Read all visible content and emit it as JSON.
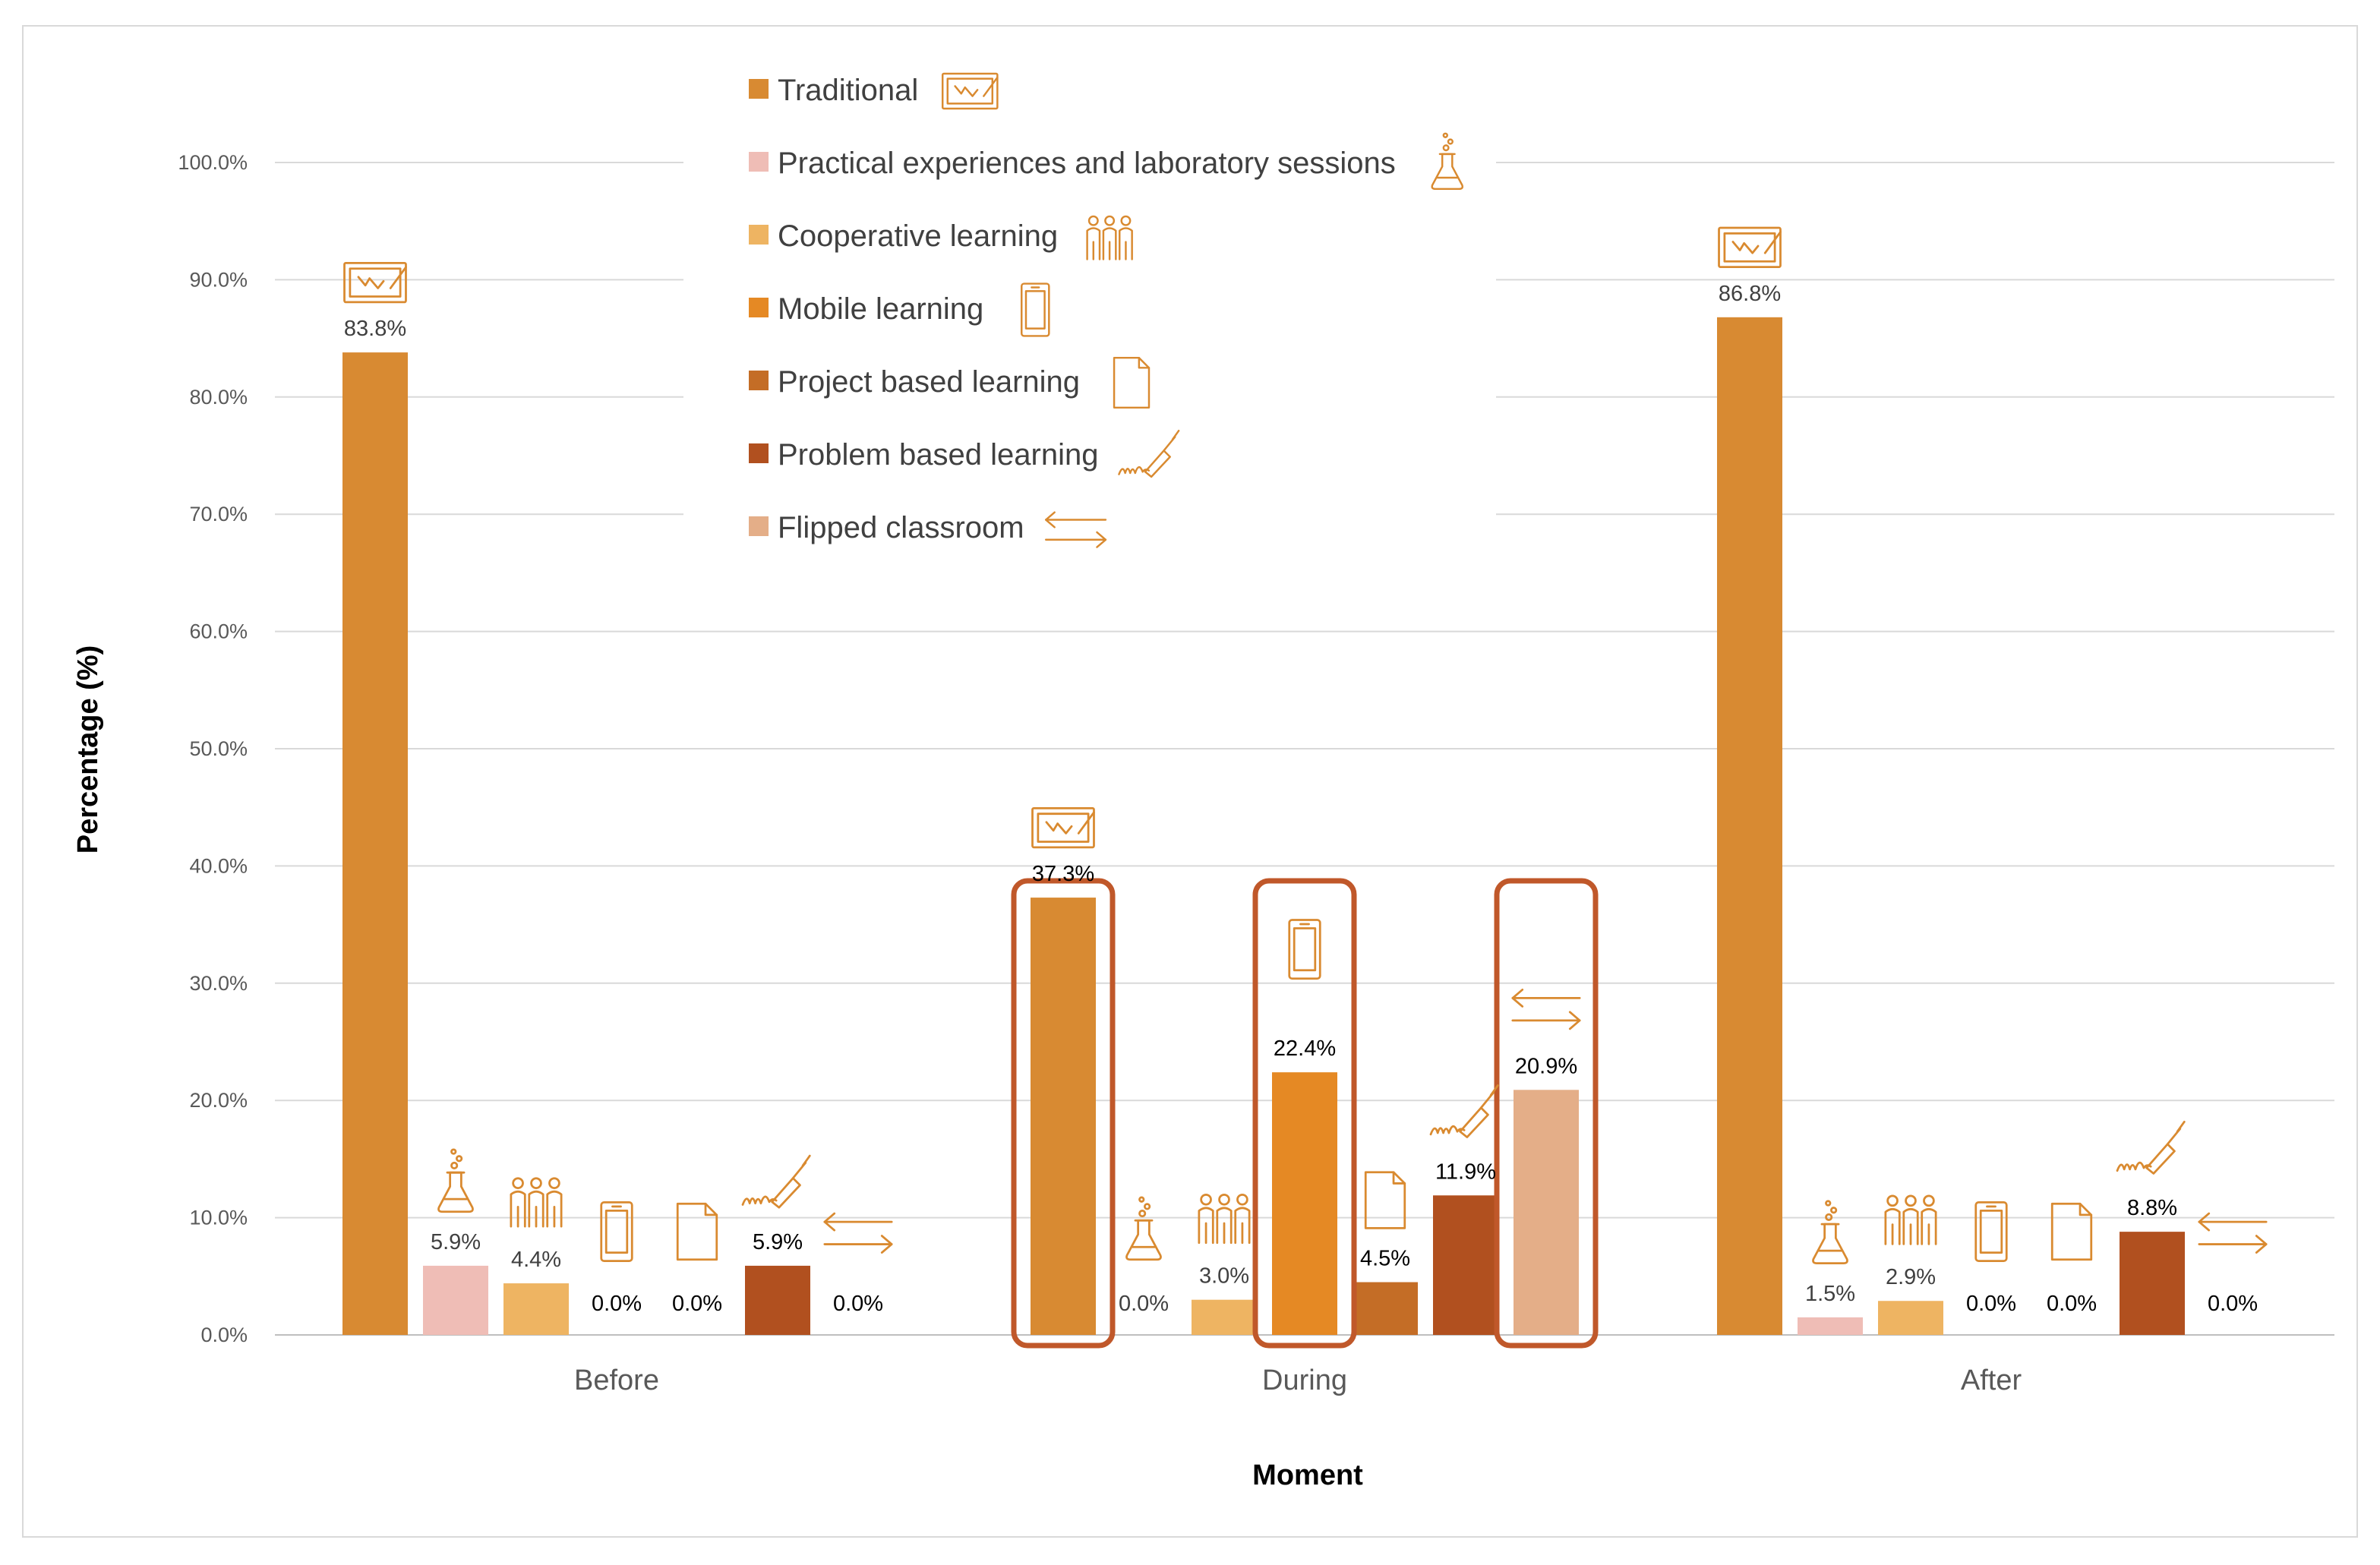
{
  "chart_data": {
    "type": "bar",
    "title": "",
    "xlabel": "Moment",
    "ylabel": "Percentage (%)",
    "ylim": [
      0,
      100
    ],
    "yticks": [
      "0.0%",
      "10.0%",
      "20.0%",
      "30.0%",
      "40.0%",
      "50.0%",
      "60.0%",
      "70.0%",
      "80.0%",
      "90.0%",
      "100.0%"
    ],
    "grid": true,
    "legend_position": "top-center",
    "categories": [
      "Before",
      "During",
      "After"
    ],
    "series": [
      {
        "name": "Traditional",
        "icon": "whiteboard-icon",
        "color": "#D88A32",
        "values": [
          83.8,
          37.3,
          86.8
        ],
        "labels": [
          "83.8%",
          "37.3%",
          "86.8%"
        ]
      },
      {
        "name": "Practical experiences and laboratory sessions",
        "icon": "flask-icon",
        "color": "#EFBDB6",
        "values": [
          5.9,
          0.0,
          1.5
        ],
        "labels": [
          "5.9%",
          "0.0%",
          "1.5%"
        ]
      },
      {
        "name": "Cooperative learning",
        "icon": "group-icon",
        "color": "#EEB462",
        "values": [
          4.4,
          3.0,
          2.9
        ],
        "labels": [
          "4.4%",
          "3.0%",
          "2.9%"
        ]
      },
      {
        "name": "Mobile  learning",
        "icon": "mobile-phone-icon",
        "color": "#E58924",
        "values": [
          0.0,
          22.4,
          0.0
        ],
        "labels": [
          "0.0%",
          "22.4%",
          "0.0%"
        ]
      },
      {
        "name": "Project based  learning",
        "icon": "document-icon",
        "color": "#C46D26",
        "values": [
          0.0,
          4.5,
          0.0
        ],
        "labels": [
          "0.0%",
          "4.5%",
          "0.0%"
        ]
      },
      {
        "name": "Problem based  learning",
        "icon": "pen-signature-icon",
        "color": "#B1501F",
        "values": [
          5.9,
          11.9,
          8.8
        ],
        "labels": [
          "5.9%",
          "11.9%",
          "8.8%"
        ]
      },
      {
        "name": "Flipped classroom",
        "icon": "arrows-exchange-icon",
        "color": "#E4AE88",
        "values": [
          0.0,
          20.9,
          0.0
        ],
        "labels": [
          "0.0%",
          "20.9%",
          "0.0%"
        ]
      }
    ],
    "highlighted": [
      {
        "category": "During",
        "series": "Traditional"
      },
      {
        "category": "During",
        "series": "Mobile  learning"
      },
      {
        "category": "During",
        "series": "Flipped classroom"
      }
    ],
    "highlight_color": "#C0582A",
    "icon_color": "#D98A30"
  }
}
